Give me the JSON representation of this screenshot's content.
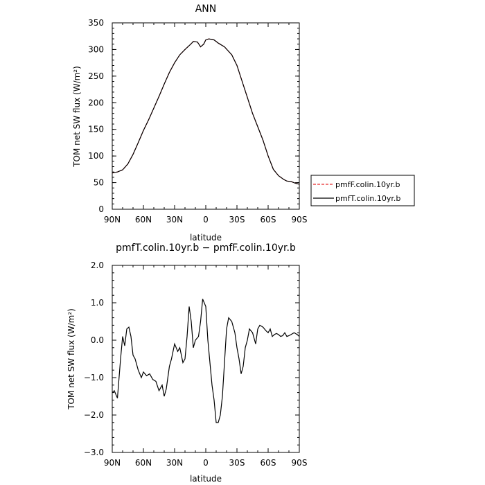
{
  "chart_data": [
    {
      "type": "line",
      "title": "ANN",
      "xlabel": "latitude",
      "ylabel": "TOM net SW flux (W/m²)",
      "xlim": [
        90,
        -90
      ],
      "ylim": [
        0,
        350
      ],
      "x_ticks": [
        {
          "value": 90,
          "label": "90N"
        },
        {
          "value": 60,
          "label": "60N"
        },
        {
          "value": 30,
          "label": "30N"
        },
        {
          "value": 0,
          "label": "0"
        },
        {
          "value": -30,
          "label": "30S"
        },
        {
          "value": -60,
          "label": "60S"
        },
        {
          "value": -90,
          "label": "90S"
        }
      ],
      "y_ticks": [
        {
          "value": 0,
          "label": "0"
        },
        {
          "value": 50,
          "label": "50"
        },
        {
          "value": 100,
          "label": "100"
        },
        {
          "value": 150,
          "label": "150"
        },
        {
          "value": 200,
          "label": "200"
        },
        {
          "value": 250,
          "label": "250"
        },
        {
          "value": 300,
          "label": "300"
        },
        {
          "value": 350,
          "label": "350"
        }
      ],
      "grid": false,
      "legend": "right",
      "x": [
        90,
        85,
        80,
        75,
        70,
        65,
        60,
        55,
        50,
        45,
        40,
        35,
        30,
        25,
        20,
        15,
        12,
        8,
        5,
        2,
        0,
        -3,
        -8,
        -12,
        -18,
        -25,
        -30,
        -35,
        -40,
        -45,
        -50,
        -55,
        -60,
        -65,
        -70,
        -75,
        -78,
        -82,
        -86,
        -90
      ],
      "series": [
        {
          "name": "pmfF.colin.10yr.b",
          "color": "#e8292a",
          "dash": "dashed",
          "values": [
            68,
            70,
            74,
            85,
            103,
            125,
            148,
            168,
            190,
            212,
            235,
            257,
            275,
            290,
            300,
            309,
            315,
            314,
            305,
            310,
            318,
            320,
            318,
            312,
            305,
            290,
            270,
            240,
            210,
            180,
            155,
            130,
            100,
            75,
            63,
            56,
            53,
            52,
            49,
            47
          ]
        },
        {
          "name": "pmfT.colin.10yr.b",
          "color": "#000000",
          "dash": "solid",
          "values": [
            68,
            70,
            74,
            85,
            103,
            125,
            148,
            168,
            190,
            212,
            235,
            257,
            275,
            290,
            300,
            309,
            315,
            314,
            305,
            310,
            318,
            320,
            318,
            312,
            305,
            290,
            270,
            240,
            210,
            180,
            155,
            130,
            100,
            75,
            63,
            56,
            53,
            52,
            49,
            47
          ]
        }
      ]
    },
    {
      "type": "line",
      "title": "pmfT.colin.10yr.b − pmfF.colin.10yr.b",
      "xlabel": "latitude",
      "ylabel": "TOM net SW flux (W/m²)",
      "xlim": [
        90,
        -90
      ],
      "ylim": [
        -3.0,
        2.0
      ],
      "x_ticks": [
        {
          "value": 90,
          "label": "90N"
        },
        {
          "value": 60,
          "label": "60N"
        },
        {
          "value": 30,
          "label": "30N"
        },
        {
          "value": 0,
          "label": "0"
        },
        {
          "value": -30,
          "label": "30S"
        },
        {
          "value": -60,
          "label": "60S"
        },
        {
          "value": -90,
          "label": "90S"
        }
      ],
      "y_ticks": [
        {
          "value": -3,
          "label": "−3.0"
        },
        {
          "value": -2,
          "label": "−2.0"
        },
        {
          "value": -1,
          "label": "−1.0"
        },
        {
          "value": 0,
          "label": "0.0"
        },
        {
          "value": 1,
          "label": "1.0"
        },
        {
          "value": 2,
          "label": "2.0"
        }
      ],
      "grid": false,
      "x": [
        90,
        88,
        85,
        82,
        80,
        78,
        76,
        74,
        72,
        70,
        68,
        65,
        62,
        60,
        57,
        54,
        51,
        48,
        45,
        42,
        40,
        38,
        35,
        33,
        30,
        27,
        25,
        22,
        20,
        18,
        16,
        14,
        12,
        10,
        7,
        5,
        3,
        0,
        -2,
        -4,
        -6,
        -8,
        -10,
        -12,
        -14,
        -16,
        -18,
        -20,
        -22,
        -25,
        -28,
        -30,
        -32,
        -34,
        -36,
        -38,
        -40,
        -42,
        -45,
        -48,
        -50,
        -52,
        -55,
        -58,
        -60,
        -62,
        -64,
        -66,
        -68,
        -70,
        -72,
        -74,
        -76,
        -78,
        -80,
        -82,
        -85,
        -88,
        -90
      ],
      "series": [
        {
          "name": "",
          "color": "#000000",
          "values": [
            -1.4,
            -1.35,
            -1.55,
            -0.5,
            0.1,
            -0.15,
            0.3,
            0.35,
            0.1,
            -0.4,
            -0.5,
            -0.8,
            -1.0,
            -0.85,
            -0.95,
            -0.9,
            -1.05,
            -1.1,
            -1.35,
            -1.2,
            -1.5,
            -1.3,
            -0.7,
            -0.5,
            -0.1,
            -0.3,
            -0.2,
            -0.6,
            -0.5,
            0.1,
            0.9,
            0.5,
            -0.2,
            0.0,
            0.1,
            0.5,
            1.1,
            0.9,
            0.0,
            -0.6,
            -1.2,
            -1.6,
            -2.2,
            -2.2,
            -2.0,
            -1.5,
            -0.6,
            0.3,
            0.6,
            0.5,
            0.2,
            -0.2,
            -0.5,
            -0.9,
            -0.7,
            -0.2,
            0.0,
            0.3,
            0.2,
            -0.1,
            0.3,
            0.4,
            0.35,
            0.25,
            0.2,
            0.3,
            0.1,
            0.15,
            0.18,
            0.15,
            0.1,
            0.12,
            0.2,
            0.1,
            0.12,
            0.15,
            0.2,
            0.15,
            0.1
          ]
        }
      ]
    }
  ]
}
